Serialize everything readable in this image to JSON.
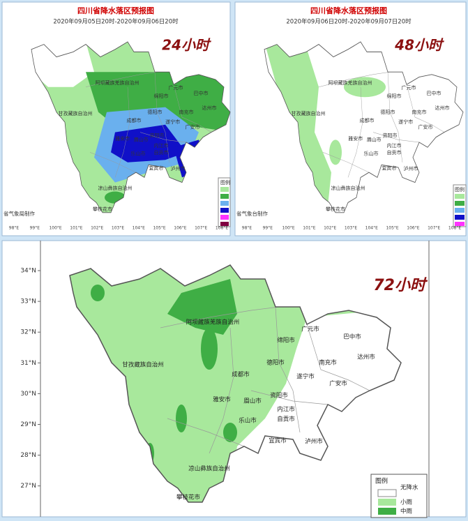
{
  "top_panels": [
    {
      "title": "四川省降水落区预报图",
      "subtitle": "2020年09月05日20时-2020年09月06日20时",
      "period": "24小时",
      "legend_title": "图例",
      "credit": "省气象局制作"
    },
    {
      "title": "四川省降水落区预报图",
      "subtitle": "2020年09月06日20时-2020年09月07日20时",
      "period": "48小时",
      "legend_title": "图例",
      "credit": "省气象台制作"
    }
  ],
  "x_axis_labels": [
    "98°E",
    "99°E",
    "100°E",
    "101°E",
    "102°E",
    "103°E",
    "104°E",
    "105°E",
    "106°E",
    "107°E",
    "108°E"
  ],
  "bottom_panel": {
    "period": "72小时",
    "y_axis_labels": [
      "34°N",
      "33°N",
      "32°N",
      "31°N",
      "30°N",
      "29°N",
      "28°N",
      "27°N"
    ],
    "legend": {
      "title": "图例",
      "items": [
        "无降水",
        "小雨",
        "中雨"
      ]
    }
  },
  "map_labels": [
    "阿坝藏族羌族自治州",
    "甘孜藏族自治州",
    "广元市",
    "巴中市",
    "绵阳市",
    "达州市",
    "南充市",
    "德阳市",
    "成都市",
    "遂宁市",
    "广安市",
    "资阳市",
    "眉山市",
    "雅安市",
    "内江市",
    "乐山市",
    "自贡市",
    "宜宾市",
    "泸州市",
    "凉山彝族自治州",
    "攀枝花市"
  ]
}
